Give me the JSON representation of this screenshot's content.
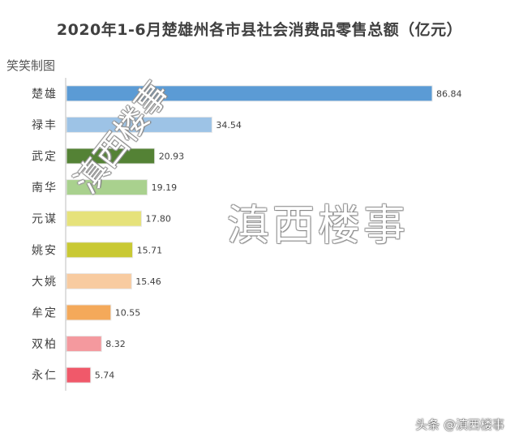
{
  "chart_data": {
    "type": "bar",
    "orientation": "horizontal",
    "title": "2020年1-6月楚雄州各市县社会消费品零售总额（亿元）",
    "maker_label": "笑笑制图",
    "categories": [
      "楚雄",
      "禄丰",
      "武定",
      "南华",
      "元谋",
      "姚安",
      "大姚",
      "牟定",
      "双柏",
      "永仁"
    ],
    "values": [
      86.84,
      34.54,
      20.93,
      19.19,
      17.8,
      15.71,
      15.46,
      10.55,
      8.32,
      5.74
    ],
    "value_labels": [
      "86.84",
      "34.54",
      "20.93",
      "19.19",
      "17.80",
      "15.71",
      "15.46",
      "10.55",
      "8.32",
      "5.74"
    ],
    "bar_colors": [
      "#5b9bd5",
      "#9dc3e6",
      "#548235",
      "#a9d18e",
      "#e6e27a",
      "#c9c934",
      "#f8cba0",
      "#f4a95a",
      "#f4999e",
      "#f0596a"
    ],
    "xlim": [
      0,
      86.84
    ],
    "xlabel": "",
    "ylabel": "",
    "grid": false,
    "legend": "none"
  },
  "watermarks": {
    "center": "滇西楼事",
    "diagonal": "滇西楼事",
    "footer": "头条 @滇西楼事"
  }
}
